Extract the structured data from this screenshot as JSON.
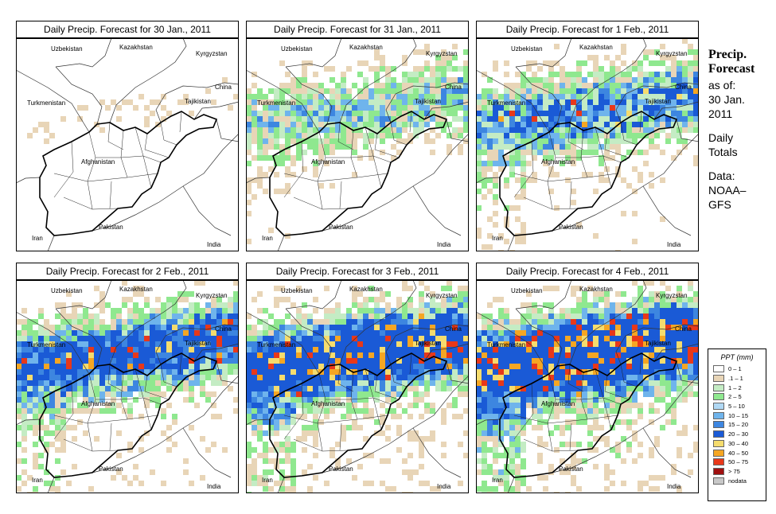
{
  "panels": [
    {
      "title": "Daily Precip. Forecast for  30 Jan., 2011",
      "intensity": 0
    },
    {
      "title": "Daily Precip. Forecast for  31 Jan., 2011",
      "intensity": 1
    },
    {
      "title": "Daily Precip. Forecast for  1 Feb., 2011",
      "intensity": 2
    },
    {
      "title": "Daily Precip. Forecast for  2 Feb., 2011",
      "intensity": 3
    },
    {
      "title": "Daily Precip. Forecast for  3 Feb., 2011",
      "intensity": 4
    },
    {
      "title": "Daily Precip. Forecast for  4 Feb., 2011",
      "intensity": 5
    }
  ],
  "labels": {
    "kazakhstan": "Kazakhstan",
    "uzbekistan": "Uzbekistan",
    "kyrgyzstan": "Kyrgyzstan",
    "china": "China",
    "turkmenistan": "Turkmenistan",
    "tajikistan": "Tajikistan",
    "afghanistan": "Afghanistan",
    "pakistan": "Pakistan",
    "iran": "Iran",
    "india": "India"
  },
  "side": {
    "title_line1": "Precip.",
    "title_line2": "Forecast",
    "asof1": "as of:",
    "asof2": "30 Jan.",
    "asof3": "2011",
    "daily1": "Daily",
    "daily2": "Totals",
    "data1": "Data:",
    "data2": "NOAA–",
    "data3": "GFS"
  },
  "legend": {
    "title": "PPT (mm)",
    "items": [
      {
        "label": "0 – 1",
        "color": "#ffffff"
      },
      {
        "label": ".1 – 1",
        "color": "#e8d5b7"
      },
      {
        "label": "1 – 2",
        "color": "#c4ecc4"
      },
      {
        "label": "2 – 5",
        "color": "#8fe88f"
      },
      {
        "label": "5 – 10",
        "color": "#b0d8f4"
      },
      {
        "label": "10 – 15",
        "color": "#6fb4ec"
      },
      {
        "label": "15 – 20",
        "color": "#3d86e0"
      },
      {
        "label": "20 – 30",
        "color": "#1a5ad6"
      },
      {
        "label": "30 – 40",
        "color": "#f5dc6e"
      },
      {
        "label": "40 – 50",
        "color": "#f5a623"
      },
      {
        "label": "50 – 75",
        "color": "#e8381a"
      },
      {
        "label": "> 75",
        "color": "#a01010"
      },
      {
        "label": "nodata",
        "color": "#c8c8c8"
      }
    ]
  }
}
